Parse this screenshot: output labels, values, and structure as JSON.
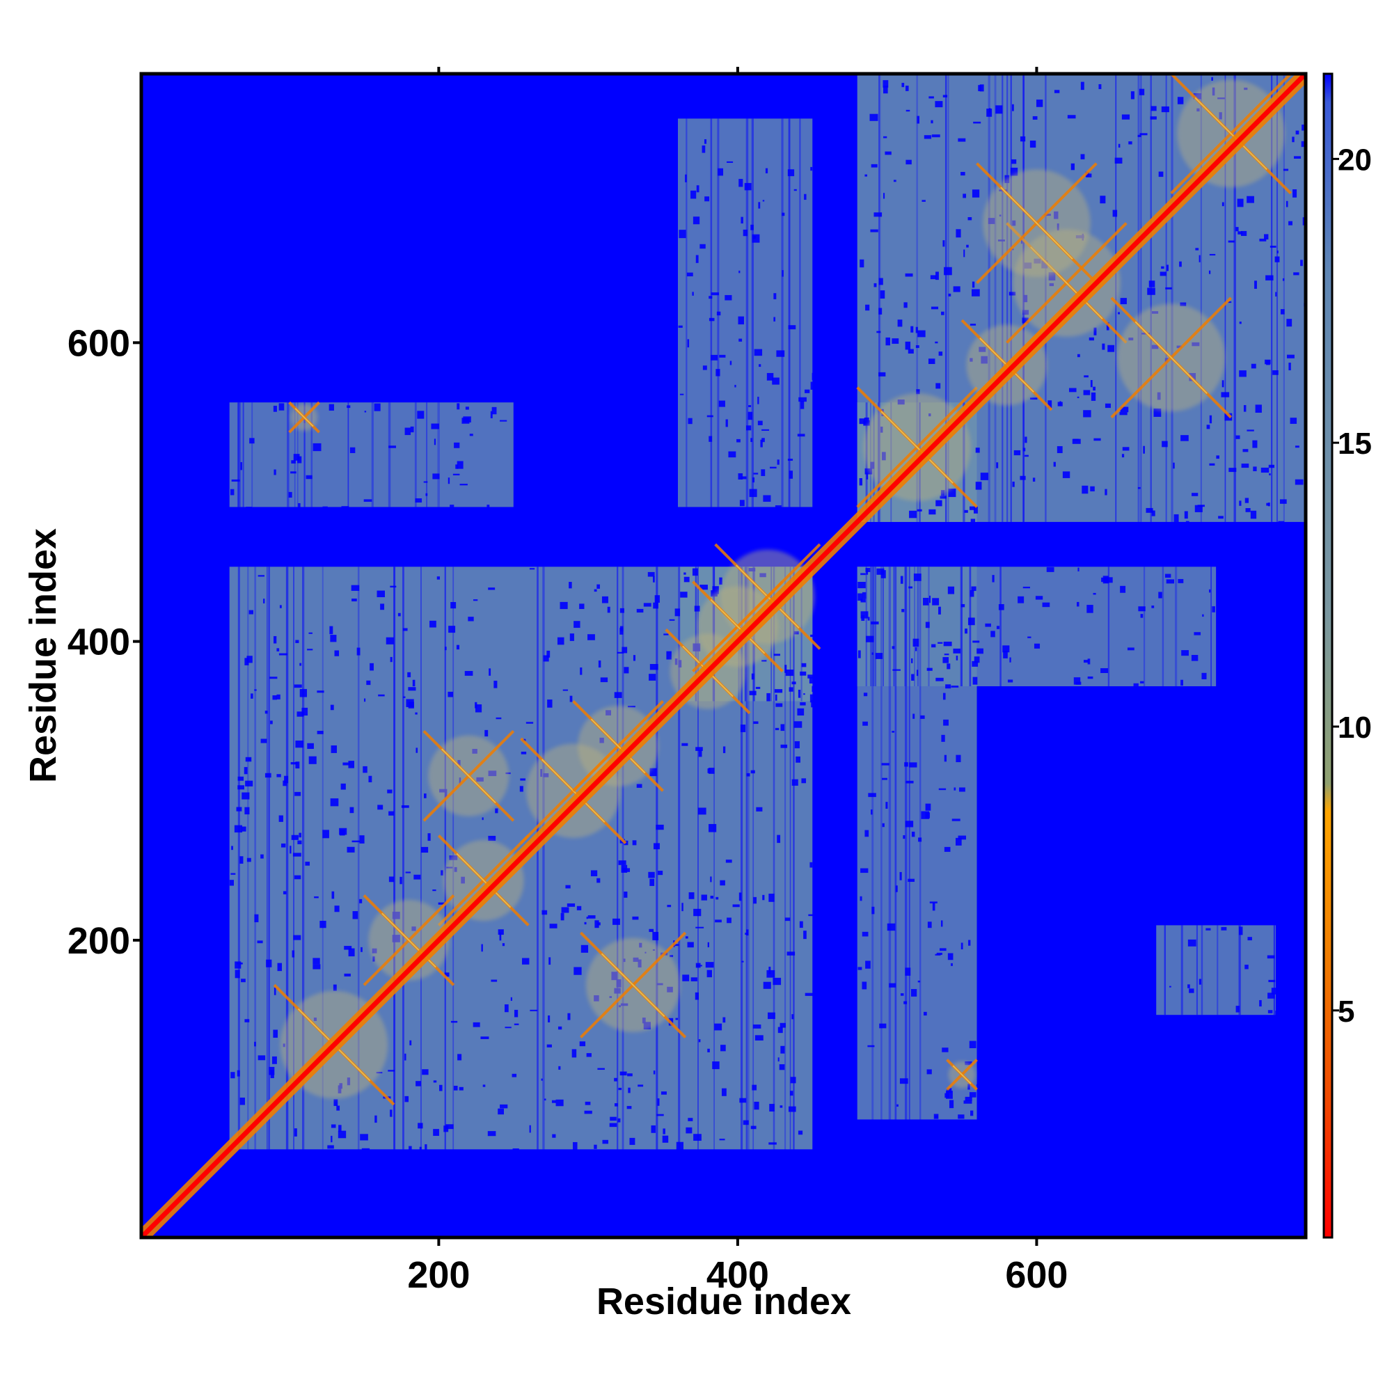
{
  "chart_data": {
    "type": "heatmap",
    "title": "",
    "xlabel": "Residue index",
    "ylabel": "Residue index",
    "xlim": [
      1,
      780
    ],
    "ylim": [
      1,
      780
    ],
    "x_ticks": [
      200,
      400,
      600
    ],
    "y_ticks": [
      200,
      400,
      600
    ],
    "x_tick_labels": [
      "200",
      "400",
      "600"
    ],
    "y_tick_labels": [
      "200",
      "400",
      "600"
    ],
    "colorbar": {
      "range": [
        1,
        21.5
      ],
      "ticks": [
        5,
        10,
        15,
        20
      ],
      "tick_labels": [
        "5",
        "10",
        "15",
        "20"
      ],
      "colors": [
        {
          "value": 1,
          "color": "#ff0000"
        },
        {
          "value": 3.5,
          "color": "#f04a00"
        },
        {
          "value": 6,
          "color": "#f07d00"
        },
        {
          "value": 8.5,
          "color": "#ffa500"
        },
        {
          "value": 9,
          "color": "#8fa070"
        },
        {
          "value": 12,
          "color": "#7a97a0"
        },
        {
          "value": 18,
          "color": "#5f86b4"
        },
        {
          "value": 21,
          "color": "#3a5ad8"
        },
        {
          "value": 21.5,
          "color": "#0000ff"
        }
      ]
    },
    "background_value": 21.5,
    "diagonal_color": "#ff0000",
    "domains": [
      {
        "range": [
          60,
          450
        ],
        "level": "medium",
        "color": "#5f86b4"
      },
      {
        "range": [
          360,
          450
        ],
        "level": "dense",
        "color": "#6a8fb0"
      },
      {
        "range": [
          480,
          780
        ],
        "level": "medium",
        "color": "#5f86b4"
      },
      {
        "range": [
          480,
          560
        ],
        "level": "dense",
        "color": "#6a8fb0"
      }
    ],
    "off_diagonal_blocks": [
      {
        "x": [
          60,
          250
        ],
        "y": [
          490,
          560
        ],
        "color": "#5f86b4"
      },
      {
        "x": [
          360,
          450
        ],
        "y": [
          490,
          750
        ],
        "color": "#5f86b4"
      },
      {
        "x": [
          480,
          560
        ],
        "y": [
          80,
          450
        ],
        "color": "#5f86b4"
      },
      {
        "x": [
          480,
          720
        ],
        "y": [
          370,
          450
        ],
        "color": "#5f86b4"
      },
      {
        "x": [
          680,
          760
        ],
        "y": [
          150,
          210
        ],
        "color": "#5f86b4"
      }
    ],
    "contact_features": [
      {
        "x": 130,
        "y": 130,
        "size": 40
      },
      {
        "x": 230,
        "y": 240,
        "size": 30
      },
      {
        "x": 290,
        "y": 300,
        "size": 35
      },
      {
        "x": 180,
        "y": 200,
        "size": 30
      },
      {
        "x": 320,
        "y": 330,
        "size": 30
      },
      {
        "x": 380,
        "y": 380,
        "size": 28
      },
      {
        "x": 420,
        "y": 430,
        "size": 35
      },
      {
        "x": 400,
        "y": 410,
        "size": 30
      },
      {
        "x": 520,
        "y": 530,
        "size": 40
      },
      {
        "x": 580,
        "y": 585,
        "size": 30
      },
      {
        "x": 620,
        "y": 640,
        "size": 40
      },
      {
        "x": 730,
        "y": 740,
        "size": 40
      },
      {
        "x": 600,
        "y": 680,
        "size": 40
      },
      {
        "x": 690,
        "y": 590,
        "size": 40
      },
      {
        "x": 330,
        "y": 170,
        "size": 35
      },
      {
        "x": 220,
        "y": 310,
        "size": 30
      },
      {
        "x": 110,
        "y": 550,
        "size": 10
      },
      {
        "x": 550,
        "y": 110,
        "size": 10
      }
    ]
  }
}
